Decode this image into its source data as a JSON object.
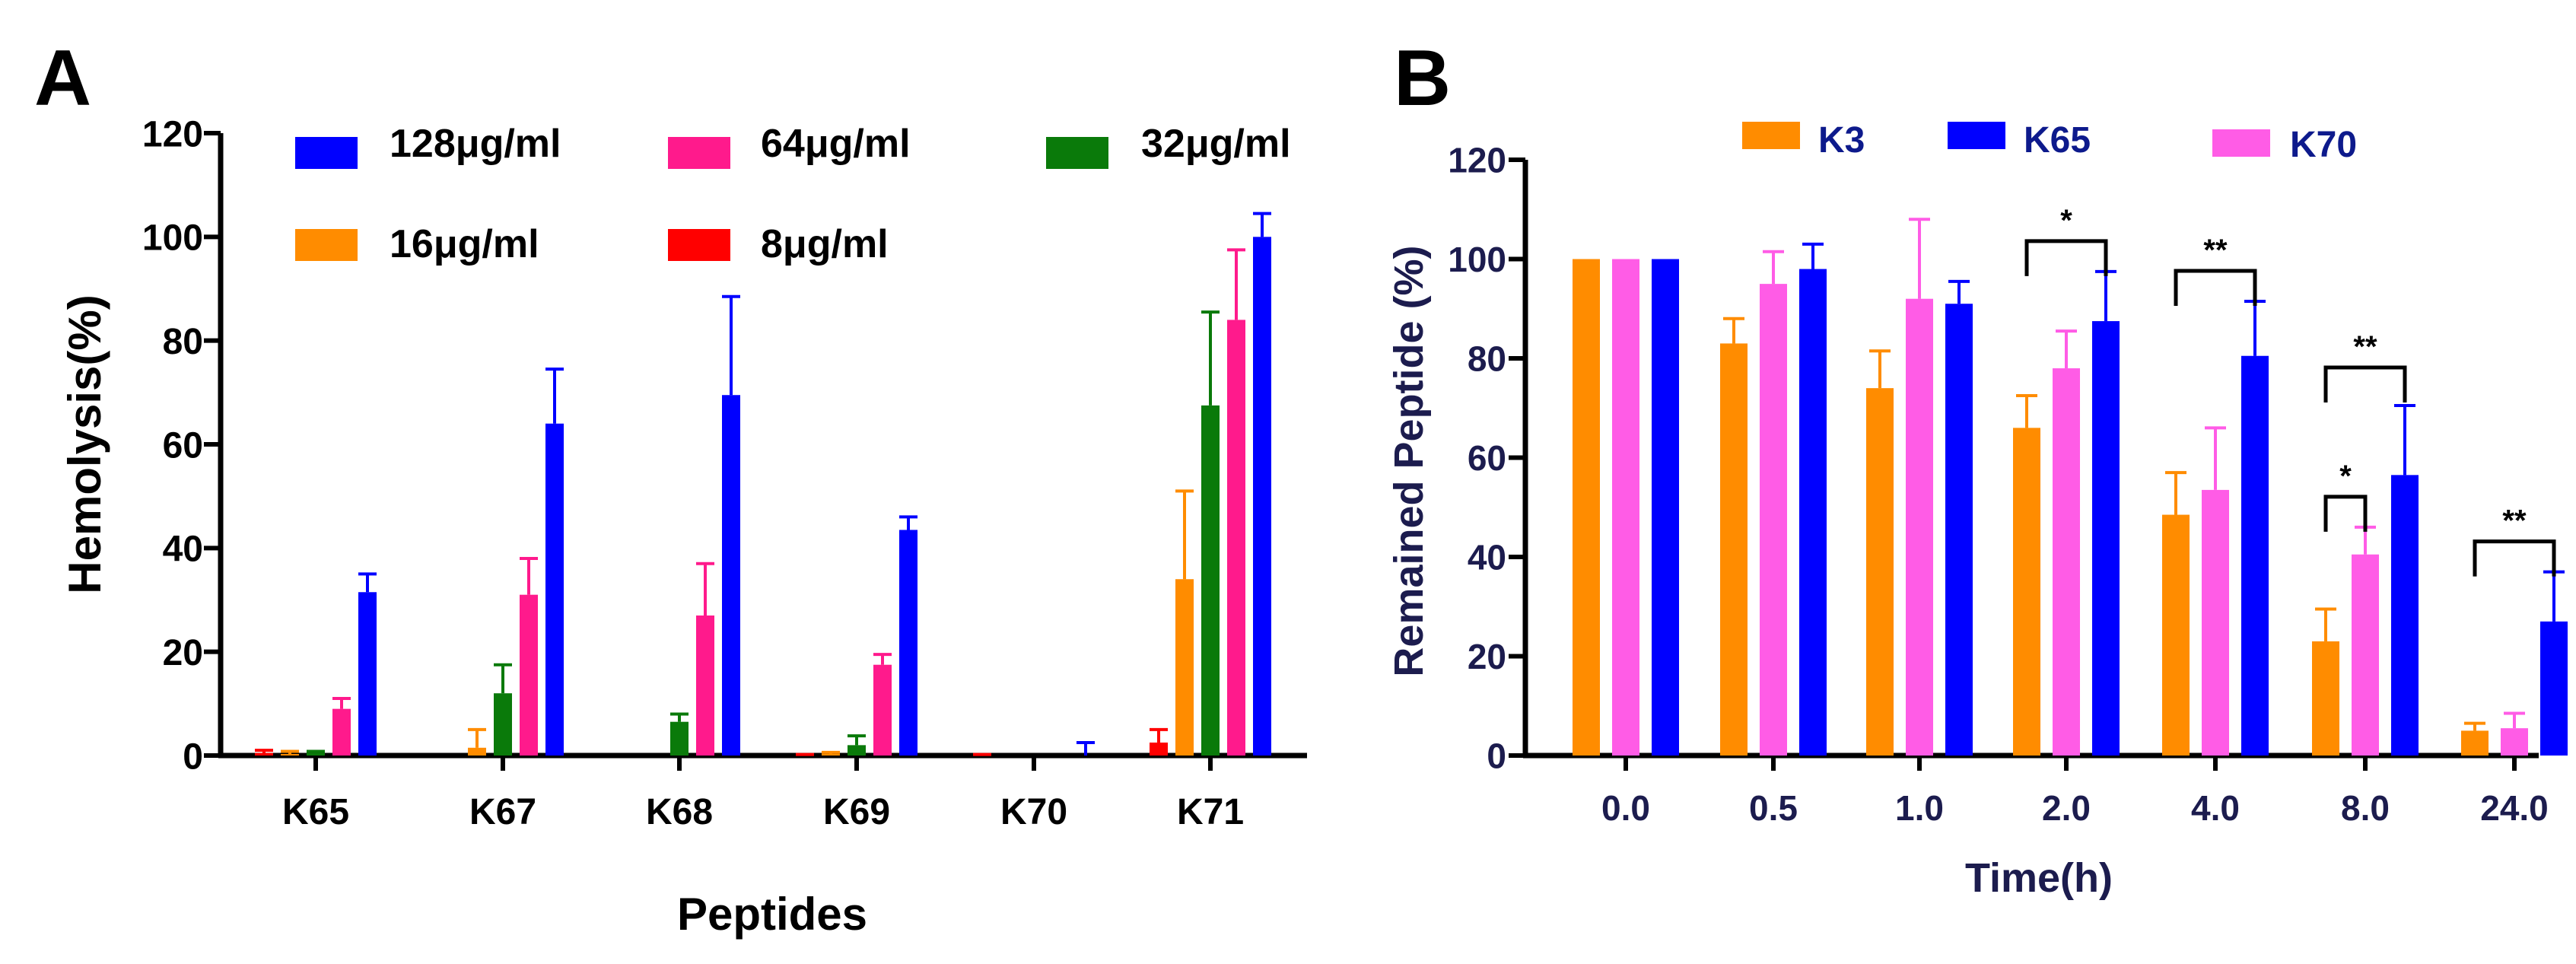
{
  "chart_data": [
    {
      "panel_label": "A",
      "type": "bar",
      "title": "",
      "xlabel": "Peptides",
      "ylabel": "Hemolysis(%)",
      "ylim": [
        0,
        120
      ],
      "yticks": [
        "0",
        "20",
        "40",
        "60",
        "80",
        "100",
        "120"
      ],
      "categories": [
        "K65",
        "K67",
        "K68",
        "K69",
        "K70",
        "K71"
      ],
      "series": [
        {
          "name": "8μg/ml",
          "color": "#ff0000",
          "values": [
            0.5,
            0,
            0,
            0,
            0,
            2.5
          ],
          "errors": [
            0.5,
            0,
            0,
            0.2,
            0.2,
            2.5
          ]
        },
        {
          "name": "16μg/ml",
          "color": "#ff8c00",
          "values": [
            0.3,
            1.5,
            0,
            0.3,
            0,
            34
          ],
          "errors": [
            0.5,
            3.5,
            0,
            0.3,
            0,
            17
          ]
        },
        {
          "name": "32μg/ml",
          "color": "#0a7a0a",
          "values": [
            0.5,
            12,
            6.5,
            2,
            0,
            67.5
          ],
          "errors": [
            0.3,
            5.5,
            1.5,
            1.8,
            0,
            18
          ]
        },
        {
          "name": "64μg/ml",
          "color": "#ff1a8c",
          "values": [
            9,
            31,
            27,
            17.5,
            0,
            84
          ],
          "errors": [
            2,
            7,
            10,
            2,
            0,
            13.5
          ]
        },
        {
          "name": "128μg/ml",
          "color": "#0000ff",
          "values": [
            31.5,
            64,
            69.5,
            43.5,
            0,
            100
          ],
          "errors": [
            3.5,
            10.5,
            19,
            2.5,
            2.5,
            4.5
          ]
        }
      ],
      "legend": {
        "placement": "top",
        "order": [
          "128μg/ml",
          "64μg/ml",
          "32μg/ml",
          "16μg/ml",
          "8μg/ml"
        ]
      }
    },
    {
      "panel_label": "B",
      "type": "bar",
      "title": "",
      "xlabel": "Time(h)",
      "ylabel": "Remained Peptide (%)",
      "ylim": [
        0,
        120
      ],
      "yticks": [
        "0",
        "20",
        "40",
        "60",
        "80",
        "100",
        "120"
      ],
      "categories": [
        "0.0",
        "0.5",
        "1.0",
        "2.0",
        "4.0",
        "8.0",
        "24.0"
      ],
      "series": [
        {
          "name": "K3",
          "color": "#ff8c00",
          "values": [
            100,
            83,
            74,
            66,
            48.5,
            23,
            5
          ],
          "errors": [
            0,
            5,
            7.5,
            6.5,
            8.5,
            6.5,
            1.5
          ]
        },
        {
          "name": "K70",
          "color": "#ff5ce6",
          "values": [
            100,
            95,
            92,
            78,
            53.5,
            40.5,
            5.5
          ],
          "errors": [
            0,
            6.5,
            16,
            7.5,
            12.5,
            5.5,
            3
          ]
        },
        {
          "name": "K65",
          "color": "#0000ff",
          "values": [
            100,
            98,
            91,
            87.5,
            80.5,
            56.5,
            27
          ],
          "errors": [
            0,
            5,
            4.5,
            10,
            11,
            14,
            10
          ]
        }
      ],
      "legend": {
        "placement": "top",
        "order": [
          "K3",
          "K65",
          "K70"
        ]
      },
      "significance": [
        {
          "category": "2.0",
          "from": "K3",
          "to": "K65",
          "label": "*"
        },
        {
          "category": "4.0",
          "from": "K3",
          "to": "K65",
          "label": "**"
        },
        {
          "category": "8.0",
          "from": "K3",
          "to": "K65",
          "label": "**"
        },
        {
          "category": "8.0",
          "from": "K3",
          "to": "K70",
          "label": "*"
        },
        {
          "category": "24.0",
          "from": "K3",
          "to": "K65",
          "label": "**"
        }
      ]
    }
  ]
}
